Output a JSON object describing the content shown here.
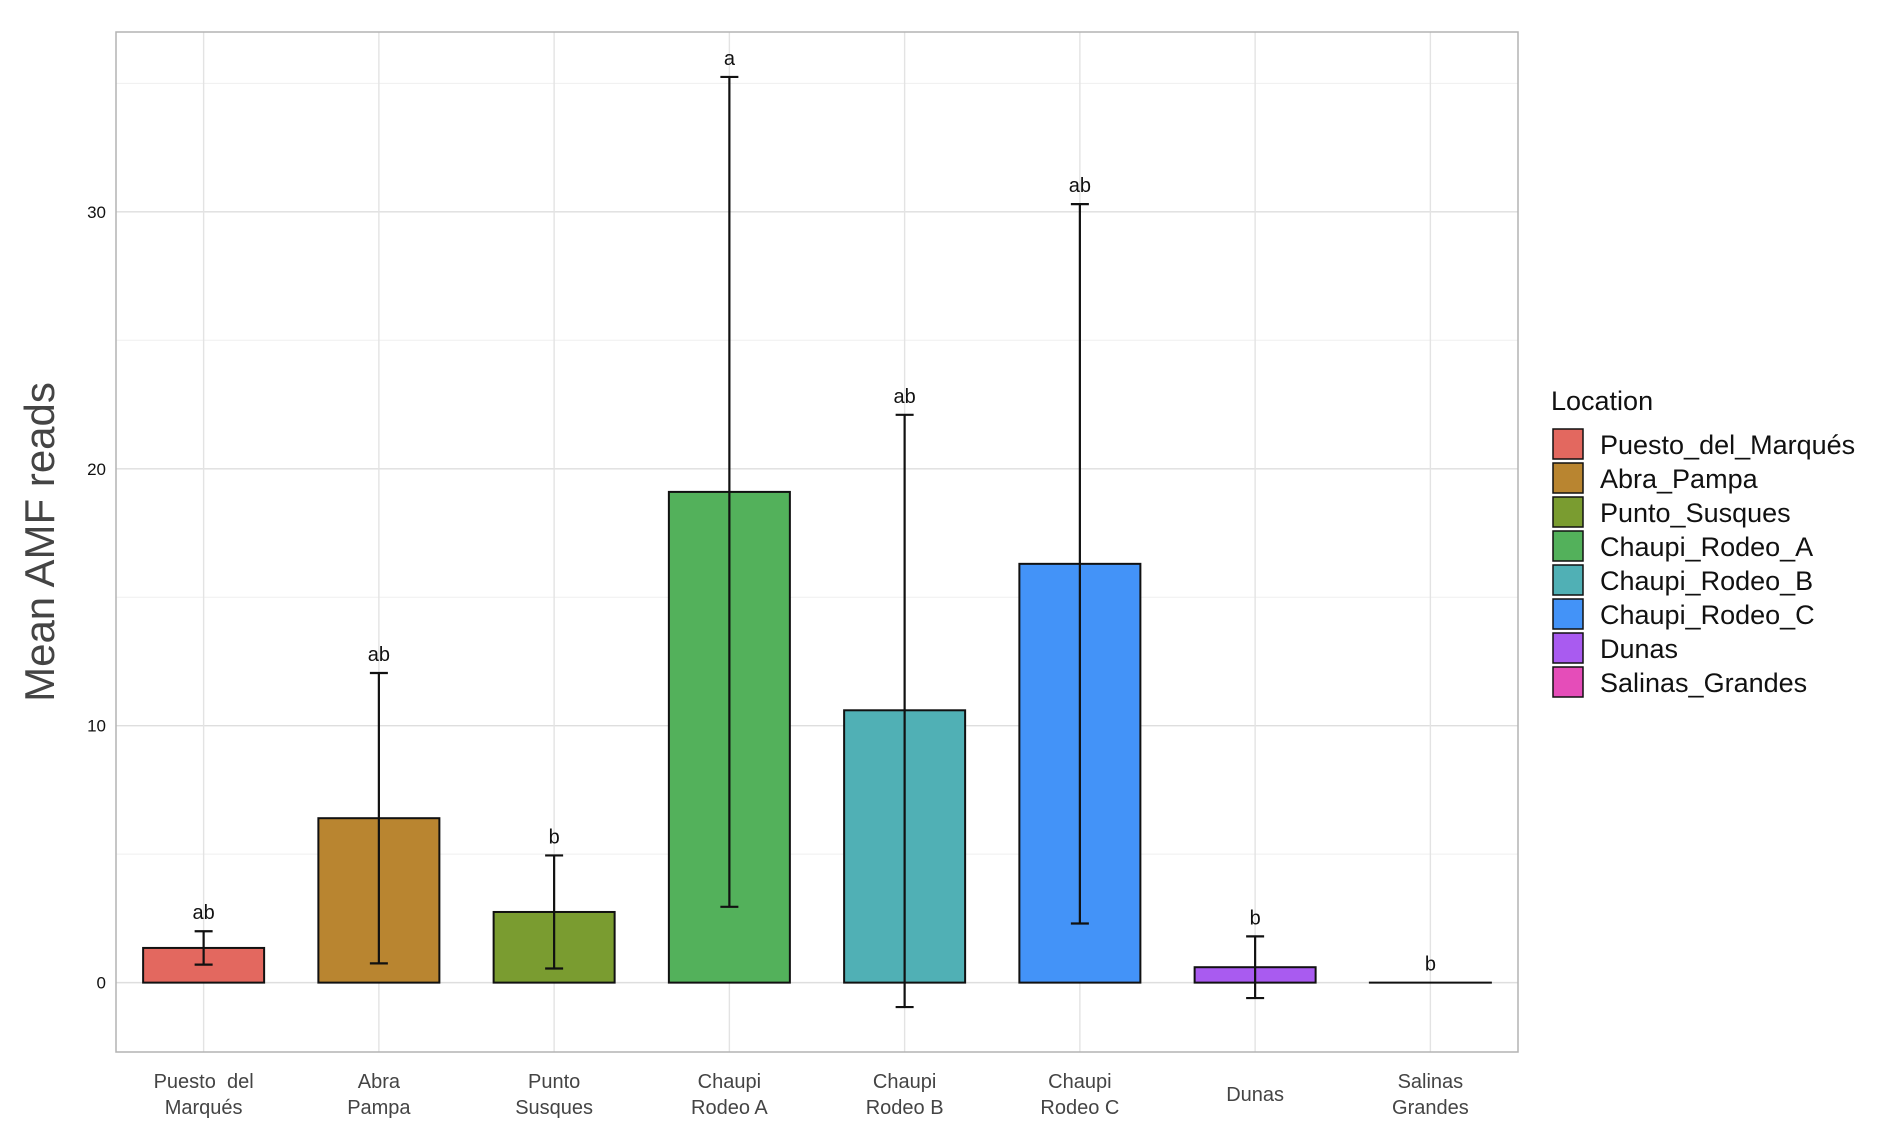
{
  "chart_data": {
    "type": "bar",
    "xlabel": "",
    "ylabel": "Mean AMF reads",
    "ylim": [
      -2.7,
      37
    ],
    "yticks": [
      0,
      10,
      20,
      30
    ],
    "grid": true,
    "legend_position": "right",
    "legend_title": "Location",
    "categories": [
      {
        "label_lines": [
          "Puesto  del",
          "Marqués"
        ],
        "legend": "Puesto_del_Marqués",
        "value": 1.35,
        "err_low": 0.7,
        "err_high": 2.0,
        "significance": "ab",
        "color": "#E3685F"
      },
      {
        "label_lines": [
          "Abra",
          "Pampa"
        ],
        "legend": "Abra_Pampa",
        "value": 6.4,
        "err_low": 0.75,
        "err_high": 12.05,
        "significance": "ab",
        "color": "#B98530"
      },
      {
        "label_lines": [
          "Punto",
          "Susques"
        ],
        "legend": "Punto_Susques",
        "value": 2.75,
        "err_low": 0.55,
        "err_high": 4.95,
        "significance": "b",
        "color": "#7A9C30"
      },
      {
        "label_lines": [
          "Chaupi",
          "Rodeo A"
        ],
        "legend": "Chaupi_Rodeo_A",
        "value": 19.1,
        "err_low": 2.95,
        "err_high": 35.25,
        "significance": "a",
        "color": "#53B15B"
      },
      {
        "label_lines": [
          "Chaupi",
          "Rodeo B"
        ],
        "legend": "Chaupi_Rodeo_B",
        "value": 10.6,
        "err_low": -0.95,
        "err_high": 22.1,
        "significance": "ab",
        "color": "#50B0B5"
      },
      {
        "label_lines": [
          "Chaupi",
          "Rodeo C"
        ],
        "legend": "Chaupi_Rodeo_C",
        "value": 16.3,
        "err_low": 2.3,
        "err_high": 30.3,
        "significance": "ab",
        "color": "#4393F8"
      },
      {
        "label_lines": [
          "Dunas"
        ],
        "legend": "Dunas",
        "value": 0.6,
        "err_low": -0.6,
        "err_high": 1.8,
        "significance": "b",
        "color": "#A95BF0"
      },
      {
        "label_lines": [
          "Salinas",
          "Grandes"
        ],
        "legend": "Salinas_Grandes",
        "value": 0.0,
        "err_low": 0.0,
        "err_high": 0.0,
        "significance": "b",
        "color": "#E54DB9"
      }
    ]
  }
}
